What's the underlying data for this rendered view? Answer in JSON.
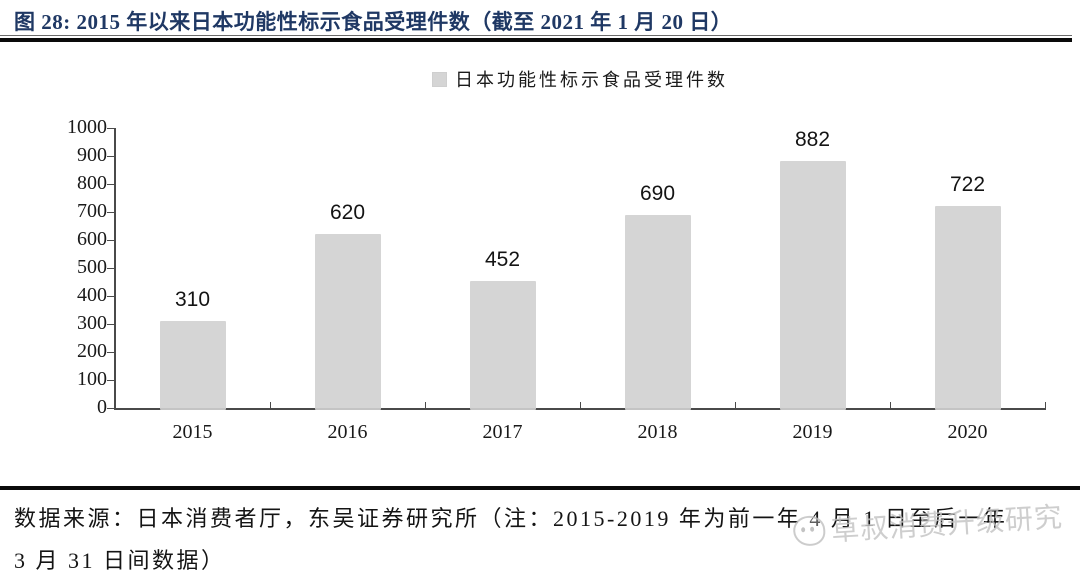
{
  "header": {
    "title": "图 28:  2015 年以来日本功能性标示食品受理件数（截至 2021 年 1 月 20 日）"
  },
  "chart_data": {
    "type": "bar",
    "title": "2015 年以来日本功能性标示食品受理件数（截至 2021 年 1 月 20 日）",
    "legend": [
      "日本功能性标示食品受理件数"
    ],
    "legend_position": "top-center",
    "categories": [
      "2015",
      "2016",
      "2017",
      "2018",
      "2019",
      "2020"
    ],
    "values": [
      310,
      620,
      452,
      690,
      882,
      722
    ],
    "xlabel": "",
    "ylabel": "",
    "ylim": [
      0,
      1000
    ],
    "y_ticks": [
      0,
      100,
      200,
      300,
      400,
      500,
      600,
      700,
      800,
      900,
      1000
    ],
    "grid": false,
    "bar_color": "#d5d5d5"
  },
  "footer": {
    "line1": "数据来源：日本消费者厅，东吴证券研究所（注：2015-2019 年为前一年 4 月 1 日至后一年",
    "line2": "3 月 31 日间数据）"
  },
  "watermark": {
    "text": "草叔消费升级研究"
  },
  "colors": {
    "title_text": "#1f3864",
    "bar_fill": "#d5d5d5",
    "axis": "#4a4a4a"
  }
}
